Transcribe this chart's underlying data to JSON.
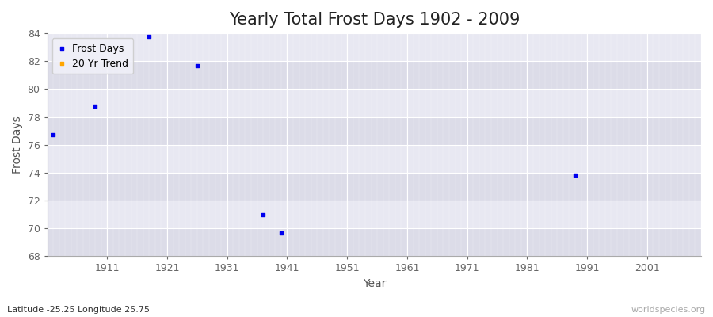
{
  "title": "Yearly Total Frost Days 1902 - 2009",
  "xlabel": "Year",
  "ylabel": "Frost Days",
  "fig_background_color": "#ffffff",
  "plot_background_color": "#e8e8ee",
  "data_points": [
    {
      "year": 1902,
      "value": 76.7
    },
    {
      "year": 1909,
      "value": 78.8
    },
    {
      "year": 1918,
      "value": 83.8
    },
    {
      "year": 1926,
      "value": 81.7
    },
    {
      "year": 1937,
      "value": 71.0
    },
    {
      "year": 1940,
      "value": 69.7
    },
    {
      "year": 1989,
      "value": 73.8
    }
  ],
  "point_color": "#0000ee",
  "trend_color": "#ffa500",
  "ylim": [
    68,
    84
  ],
  "xlim": [
    1901,
    2010
  ],
  "yticks": [
    68,
    70,
    72,
    74,
    76,
    78,
    80,
    82,
    84
  ],
  "xticks": [
    1911,
    1921,
    1931,
    1941,
    1951,
    1961,
    1971,
    1981,
    1991,
    2001
  ],
  "legend_labels": [
    "Frost Days",
    "20 Yr Trend"
  ],
  "bottom_left_text": "Latitude -25.25 Longitude 25.75",
  "bottom_right_text": "worldspecies.org",
  "title_fontsize": 15,
  "axis_label_fontsize": 10,
  "tick_fontsize": 9,
  "legend_fontsize": 9,
  "marker_size": 3,
  "stripe_colors": [
    "#dcdce8",
    "#e8e8f2"
  ],
  "grid_color": "#ffffff",
  "spine_color": "#aaaaaa",
  "tick_color": "#666666",
  "label_color": "#555555",
  "title_color": "#222222",
  "bottom_left_color": "#333333",
  "bottom_right_color": "#aaaaaa"
}
